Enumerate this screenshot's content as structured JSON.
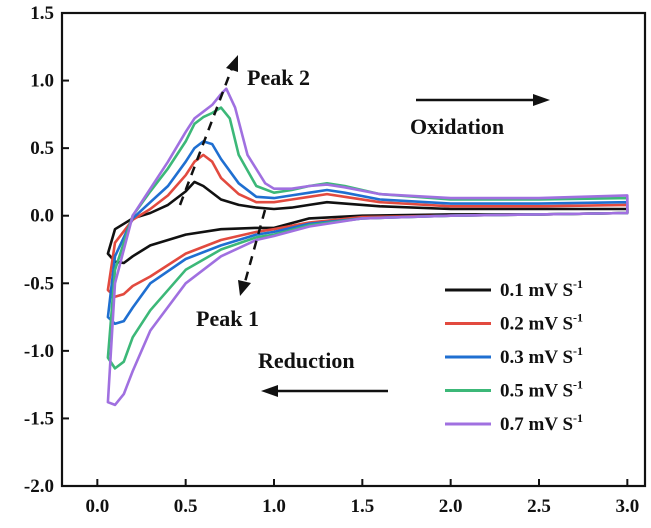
{
  "chart_data": {
    "type": "line",
    "title": "",
    "xlabel": "",
    "ylabel": "",
    "xlim": [
      -0.2,
      3.1
    ],
    "ylim": [
      -2.0,
      1.5
    ],
    "grid": false,
    "legend_position": "bottom-right",
    "x_ticks": [
      "0.0",
      "0.5",
      "1.0",
      "1.5",
      "2.0",
      "2.5",
      "3.0"
    ],
    "y_ticks": [
      "1.5",
      "1.0",
      "0.5",
      "0.0",
      "-0.5",
      "-1.0",
      "-1.5",
      "-2.0"
    ],
    "annotations": {
      "peak2": "Peak 2",
      "peak1": "Peak 1",
      "oxidation": "Oxidation",
      "reduction": "Reduction"
    },
    "series": [
      {
        "name": "0.1 mV S-1",
        "legend_main": "0.1 mV S",
        "legend_sup": "-1",
        "color": "#111111",
        "oxidation": [
          [
            0.06,
            -0.28
          ],
          [
            0.1,
            -0.1
          ],
          [
            0.2,
            -0.02
          ],
          [
            0.3,
            0.02
          ],
          [
            0.4,
            0.08
          ],
          [
            0.5,
            0.18
          ],
          [
            0.55,
            0.25
          ],
          [
            0.6,
            0.22
          ],
          [
            0.7,
            0.12
          ],
          [
            0.8,
            0.08
          ],
          [
            0.9,
            0.06
          ],
          [
            1.0,
            0.05
          ],
          [
            1.1,
            0.06
          ],
          [
            1.2,
            0.08
          ],
          [
            1.3,
            0.1
          ],
          [
            1.4,
            0.09
          ],
          [
            1.6,
            0.07
          ],
          [
            2.0,
            0.05
          ],
          [
            2.5,
            0.05
          ],
          [
            3.0,
            0.05
          ]
        ],
        "reduction": [
          [
            3.0,
            0.02
          ],
          [
            2.5,
            0.01
          ],
          [
            2.0,
            0.01
          ],
          [
            1.5,
            0.0
          ],
          [
            1.2,
            -0.02
          ],
          [
            1.0,
            -0.09
          ],
          [
            0.9,
            -0.09
          ],
          [
            0.7,
            -0.1
          ],
          [
            0.5,
            -0.14
          ],
          [
            0.3,
            -0.22
          ],
          [
            0.2,
            -0.3
          ],
          [
            0.15,
            -0.35
          ],
          [
            0.1,
            -0.34
          ],
          [
            0.06,
            -0.28
          ]
        ]
      },
      {
        "name": "0.2 mV S-1",
        "legend_main": "0.2 mV S",
        "legend_sup": "-1",
        "color": "#e24a3f",
        "oxidation": [
          [
            0.06,
            -0.55
          ],
          [
            0.1,
            -0.2
          ],
          [
            0.2,
            -0.03
          ],
          [
            0.3,
            0.05
          ],
          [
            0.4,
            0.15
          ],
          [
            0.5,
            0.3
          ],
          [
            0.55,
            0.4
          ],
          [
            0.6,
            0.45
          ],
          [
            0.65,
            0.4
          ],
          [
            0.7,
            0.28
          ],
          [
            0.8,
            0.16
          ],
          [
            0.9,
            0.1
          ],
          [
            1.0,
            0.1
          ],
          [
            1.1,
            0.12
          ],
          [
            1.2,
            0.14
          ],
          [
            1.3,
            0.16
          ],
          [
            1.4,
            0.14
          ],
          [
            1.6,
            0.1
          ],
          [
            2.0,
            0.07
          ],
          [
            2.5,
            0.07
          ],
          [
            3.0,
            0.08
          ]
        ],
        "reduction": [
          [
            3.0,
            0.02
          ],
          [
            2.5,
            0.01
          ],
          [
            2.0,
            0.0
          ],
          [
            1.5,
            -0.01
          ],
          [
            1.2,
            -0.05
          ],
          [
            1.0,
            -0.1
          ],
          [
            0.9,
            -0.12
          ],
          [
            0.7,
            -0.18
          ],
          [
            0.5,
            -0.28
          ],
          [
            0.3,
            -0.45
          ],
          [
            0.2,
            -0.52
          ],
          [
            0.15,
            -0.58
          ],
          [
            0.1,
            -0.6
          ],
          [
            0.06,
            -0.55
          ]
        ]
      },
      {
        "name": "0.3 mV S-1",
        "legend_main": "0.3 mV S",
        "legend_sup": "-1",
        "color": "#1f6fd1",
        "oxidation": [
          [
            0.06,
            -0.75
          ],
          [
            0.1,
            -0.3
          ],
          [
            0.2,
            -0.02
          ],
          [
            0.3,
            0.1
          ],
          [
            0.4,
            0.22
          ],
          [
            0.5,
            0.4
          ],
          [
            0.55,
            0.5
          ],
          [
            0.6,
            0.55
          ],
          [
            0.65,
            0.53
          ],
          [
            0.7,
            0.42
          ],
          [
            0.8,
            0.24
          ],
          [
            0.9,
            0.14
          ],
          [
            1.0,
            0.13
          ],
          [
            1.1,
            0.15
          ],
          [
            1.2,
            0.17
          ],
          [
            1.3,
            0.19
          ],
          [
            1.4,
            0.17
          ],
          [
            1.6,
            0.12
          ],
          [
            2.0,
            0.09
          ],
          [
            2.5,
            0.09
          ],
          [
            3.0,
            0.1
          ]
        ],
        "reduction": [
          [
            3.0,
            0.02
          ],
          [
            2.5,
            0.01
          ],
          [
            2.0,
            0.0
          ],
          [
            1.5,
            -0.02
          ],
          [
            1.2,
            -0.06
          ],
          [
            1.0,
            -0.12
          ],
          [
            0.9,
            -0.14
          ],
          [
            0.7,
            -0.22
          ],
          [
            0.5,
            -0.32
          ],
          [
            0.3,
            -0.5
          ],
          [
            0.2,
            -0.68
          ],
          [
            0.15,
            -0.78
          ],
          [
            0.1,
            -0.8
          ],
          [
            0.06,
            -0.75
          ]
        ]
      },
      {
        "name": "0.5 mV S-1",
        "legend_main": "0.5 mV S",
        "legend_sup": "-1",
        "color": "#3cb878",
        "oxidation": [
          [
            0.06,
            -1.05
          ],
          [
            0.1,
            -0.4
          ],
          [
            0.2,
            0.0
          ],
          [
            0.3,
            0.18
          ],
          [
            0.4,
            0.35
          ],
          [
            0.5,
            0.55
          ],
          [
            0.55,
            0.68
          ],
          [
            0.6,
            0.73
          ],
          [
            0.65,
            0.76
          ],
          [
            0.7,
            0.8
          ],
          [
            0.75,
            0.72
          ],
          [
            0.8,
            0.45
          ],
          [
            0.9,
            0.22
          ],
          [
            1.0,
            0.17
          ],
          [
            1.1,
            0.19
          ],
          [
            1.2,
            0.22
          ],
          [
            1.3,
            0.24
          ],
          [
            1.4,
            0.22
          ],
          [
            1.6,
            0.16
          ],
          [
            2.0,
            0.12
          ],
          [
            2.5,
            0.12
          ],
          [
            3.0,
            0.13
          ]
        ],
        "reduction": [
          [
            3.0,
            0.02
          ],
          [
            2.5,
            0.01
          ],
          [
            2.0,
            0.0
          ],
          [
            1.5,
            -0.02
          ],
          [
            1.2,
            -0.07
          ],
          [
            1.0,
            -0.14
          ],
          [
            0.9,
            -0.16
          ],
          [
            0.7,
            -0.25
          ],
          [
            0.5,
            -0.4
          ],
          [
            0.3,
            -0.7
          ],
          [
            0.2,
            -0.9
          ],
          [
            0.15,
            -1.08
          ],
          [
            0.1,
            -1.13
          ],
          [
            0.06,
            -1.05
          ]
        ]
      },
      {
        "name": "0.7 mV S-1",
        "legend_main": "0.7 mV S",
        "legend_sup": "-1",
        "color": "#a070e0",
        "oxidation": [
          [
            0.06,
            -1.38
          ],
          [
            0.1,
            -0.5
          ],
          [
            0.2,
            0.0
          ],
          [
            0.3,
            0.2
          ],
          [
            0.4,
            0.4
          ],
          [
            0.5,
            0.62
          ],
          [
            0.55,
            0.72
          ],
          [
            0.6,
            0.77
          ],
          [
            0.65,
            0.82
          ],
          [
            0.7,
            0.9
          ],
          [
            0.73,
            0.94
          ],
          [
            0.78,
            0.8
          ],
          [
            0.85,
            0.45
          ],
          [
            0.95,
            0.24
          ],
          [
            1.0,
            0.2
          ],
          [
            1.1,
            0.2
          ],
          [
            1.2,
            0.22
          ],
          [
            1.3,
            0.23
          ],
          [
            1.4,
            0.21
          ],
          [
            1.6,
            0.16
          ],
          [
            2.0,
            0.13
          ],
          [
            2.5,
            0.13
          ],
          [
            3.0,
            0.15
          ]
        ],
        "reduction": [
          [
            3.0,
            0.02
          ],
          [
            2.5,
            0.01
          ],
          [
            2.0,
            0.0
          ],
          [
            1.5,
            -0.02
          ],
          [
            1.2,
            -0.08
          ],
          [
            1.0,
            -0.15
          ],
          [
            0.9,
            -0.18
          ],
          [
            0.7,
            -0.3
          ],
          [
            0.5,
            -0.5
          ],
          [
            0.3,
            -0.85
          ],
          [
            0.2,
            -1.15
          ],
          [
            0.15,
            -1.32
          ],
          [
            0.1,
            -1.4
          ],
          [
            0.06,
            -1.38
          ]
        ]
      }
    ]
  }
}
